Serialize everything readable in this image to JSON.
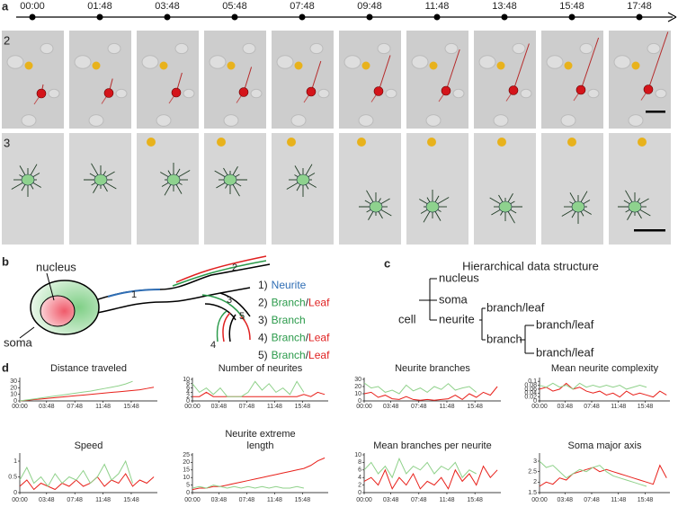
{
  "panel_labels": [
    "a",
    "b",
    "c",
    "d"
  ],
  "timeline": [
    "00:00",
    "01:48",
    "03:48",
    "05:48",
    "07:48",
    "09:48",
    "11:48",
    "13:48",
    "15:48",
    "17:48"
  ],
  "row_labels": [
    "2",
    "3"
  ],
  "cell_diagram": {
    "nucleus": "nucleus",
    "soma": "soma",
    "markers": [
      "1",
      "2",
      "3",
      "4",
      "5"
    ],
    "legend": [
      {
        "number": "1)",
        "parts": [
          {
            "text": "Neurite",
            "color": "#2e6db4"
          }
        ]
      },
      {
        "number": "2)",
        "parts": [
          {
            "text": "Branch",
            "color": "#2a9a4a"
          },
          {
            "text": "/",
            "color": "#222222"
          },
          {
            "text": "Leaf",
            "color": "#e02020"
          }
        ]
      },
      {
        "number": "3)",
        "parts": [
          {
            "text": "Branch",
            "color": "#2a9a4a"
          }
        ]
      },
      {
        "number": "4)",
        "parts": [
          {
            "text": "Branch",
            "color": "#2a9a4a"
          },
          {
            "text": "/",
            "color": "#222222"
          },
          {
            "text": "Leaf",
            "color": "#e02020"
          }
        ]
      },
      {
        "number": "5)",
        "parts": [
          {
            "text": "Branch",
            "color": "#2a9a4a"
          },
          {
            "text": "/",
            "color": "#222222"
          },
          {
            "text": "Leaf",
            "color": "#e02020"
          }
        ]
      }
    ]
  },
  "hierarchy": {
    "title": "Hierarchical data structure",
    "nodes": [
      "cell",
      "nucleus",
      "soma",
      "neurite",
      "branch/leaf",
      "branch",
      "branch/leaf",
      "branch/leaf"
    ]
  },
  "chart_data": [
    {
      "type": "line",
      "title": "Distance traveled",
      "x": [
        0,
        1,
        2,
        3,
        4,
        5,
        6,
        7,
        8,
        9,
        10,
        11,
        12,
        13,
        14,
        15,
        16,
        17,
        18,
        19
      ],
      "xlim": [
        0,
        19.5
      ],
      "xticks": [
        {
          "value": 0,
          "label": "00:00"
        },
        {
          "value": 3.8,
          "label": "03:48"
        },
        {
          "value": 7.8,
          "label": "07:48"
        },
        {
          "value": 11.8,
          "label": "11:48"
        },
        {
          "value": 15.8,
          "label": "15:48"
        }
      ],
      "ylim": [
        0,
        33
      ],
      "yticks": [
        0,
        10,
        20,
        30
      ],
      "series": [
        {
          "color": "#e8201a",
          "values": [
            0,
            1,
            2,
            3,
            4,
            5,
            6,
            7,
            8,
            9,
            10,
            11,
            12,
            13,
            14,
            15,
            16,
            17,
            19,
            21
          ]
        },
        {
          "color": "#8fd18a",
          "values": [
            0,
            1.5,
            3,
            4.5,
            6,
            7.5,
            9,
            10.5,
            12,
            13.5,
            15,
            17,
            19,
            21,
            23,
            26,
            30,
            null,
            null,
            null
          ]
        }
      ]
    },
    {
      "type": "line",
      "title": "Number of neurites",
      "x": [
        0,
        1,
        2,
        3,
        4,
        5,
        6,
        7,
        8,
        9,
        10,
        11,
        12,
        13,
        14,
        15,
        16,
        17,
        18,
        19
      ],
      "xlim": [
        0,
        19.5
      ],
      "xticks": [
        {
          "value": 0,
          "label": "00:00"
        },
        {
          "value": 3.8,
          "label": "03:48"
        },
        {
          "value": 7.8,
          "label": "07:48"
        },
        {
          "value": 11.8,
          "label": "11:48"
        },
        {
          "value": 15.8,
          "label": "15:48"
        }
      ],
      "ylim": [
        0,
        10
      ],
      "yticks": [
        0,
        2,
        4,
        6,
        8,
        10
      ],
      "series": [
        {
          "color": "#e8201a",
          "values": [
            2,
            2,
            4,
            2,
            2,
            2,
            2,
            2,
            2,
            2,
            2,
            2,
            2,
            2,
            2,
            2,
            3,
            2,
            4,
            3
          ]
        },
        {
          "color": "#8fd18a",
          "values": [
            8,
            4,
            6,
            3,
            6,
            2,
            2,
            2,
            4,
            9,
            5,
            8,
            4,
            6,
            3,
            9,
            4,
            null,
            null,
            null
          ]
        }
      ]
    },
    {
      "type": "line",
      "title": "Neurite branches",
      "x": [
        0,
        1,
        2,
        3,
        4,
        5,
        6,
        7,
        8,
        9,
        10,
        11,
        12,
        13,
        14,
        15,
        16,
        17,
        18,
        19
      ],
      "xlim": [
        0,
        19.5
      ],
      "xticks": [
        {
          "value": 0,
          "label": "00:00"
        },
        {
          "value": 3.8,
          "label": "03:48"
        },
        {
          "value": 7.8,
          "label": "07:48"
        },
        {
          "value": 11.8,
          "label": "11:48"
        },
        {
          "value": 15.8,
          "label": "15:48"
        }
      ],
      "ylim": [
        0,
        30
      ],
      "yticks": [
        0,
        10,
        20,
        30
      ],
      "series": [
        {
          "color": "#e8201a",
          "values": [
            10,
            12,
            5,
            8,
            3,
            2,
            6,
            2,
            1,
            2,
            1,
            2,
            3,
            8,
            2,
            10,
            5,
            12,
            8,
            20
          ]
        },
        {
          "color": "#8fd18a",
          "values": [
            25,
            18,
            20,
            12,
            15,
            10,
            22,
            14,
            18,
            12,
            20,
            16,
            24,
            15,
            18,
            20,
            12,
            null,
            null,
            null
          ]
        }
      ]
    },
    {
      "type": "line",
      "title": "Mean neurite complexity",
      "x": [
        0,
        1,
        2,
        3,
        4,
        5,
        6,
        7,
        8,
        9,
        10,
        11,
        12,
        13,
        14,
        15,
        16,
        17,
        18,
        19
      ],
      "xlim": [
        0,
        19.5
      ],
      "xticks": [
        {
          "value": 0,
          "label": "00:00"
        },
        {
          "value": 3.8,
          "label": "03:48"
        },
        {
          "value": 7.8,
          "label": "07:48"
        },
        {
          "value": 11.8,
          "label": "11:48"
        },
        {
          "value": 15.8,
          "label": "15:48"
        }
      ],
      "ylim": [
        0,
        0.11
      ],
      "yticks": [
        0,
        0.02,
        0.04,
        0.06,
        0.08,
        0.1
      ],
      "series": [
        {
          "color": "#e8201a",
          "values": [
            0.06,
            0.07,
            0.05,
            0.06,
            0.09,
            0.06,
            0.07,
            0.05,
            0.04,
            0.05,
            0.03,
            0.04,
            0.02,
            0.05,
            0.03,
            0.04,
            0.03,
            0.02,
            0.05,
            0.03
          ]
        },
        {
          "color": "#8fd18a",
          "values": [
            0.08,
            0.07,
            0.09,
            0.07,
            0.08,
            0.06,
            0.09,
            0.07,
            0.08,
            0.07,
            0.08,
            0.07,
            0.08,
            0.06,
            0.07,
            0.08,
            0.07,
            null,
            null,
            null
          ]
        }
      ]
    },
    {
      "type": "line",
      "title": "Speed",
      "x": [
        0,
        1,
        2,
        3,
        4,
        5,
        6,
        7,
        8,
        9,
        10,
        11,
        12,
        13,
        14,
        15,
        16,
        17,
        18,
        19
      ],
      "xlim": [
        0,
        19.5
      ],
      "xticks": [
        {
          "value": 0,
          "label": "00:00"
        },
        {
          "value": 3.8,
          "label": "03:48"
        },
        {
          "value": 7.8,
          "label": "07:48"
        },
        {
          "value": 11.8,
          "label": "11:48"
        },
        {
          "value": 15.8,
          "label": "15:48"
        }
      ],
      "ylim": [
        0,
        1.2
      ],
      "yticks": [
        0,
        0.5,
        1
      ],
      "series": [
        {
          "color": "#e8201a",
          "values": [
            0.2,
            0.4,
            0.1,
            0.3,
            0.2,
            0.1,
            0.3,
            0.2,
            0.4,
            0.2,
            0.3,
            0.5,
            0.2,
            0.4,
            0.3,
            0.6,
            0.2,
            0.4,
            0.3,
            0.5
          ]
        },
        {
          "color": "#8fd18a",
          "values": [
            0.4,
            0.8,
            0.3,
            0.5,
            0.2,
            0.6,
            0.3,
            0.5,
            0.4,
            0.7,
            0.3,
            0.5,
            0.9,
            0.4,
            0.6,
            1,
            0.3,
            null,
            null,
            null
          ]
        }
      ]
    },
    {
      "type": "line",
      "title": "Neurite extreme length",
      "x": [
        0,
        1,
        2,
        3,
        4,
        5,
        6,
        7,
        8,
        9,
        10,
        11,
        12,
        13,
        14,
        15,
        16,
        17,
        18,
        19
      ],
      "xlim": [
        0,
        19.5
      ],
      "xticks": [
        {
          "value": 0,
          "label": "00:00"
        },
        {
          "value": 3.8,
          "label": "03:48"
        },
        {
          "value": 7.8,
          "label": "07:48"
        },
        {
          "value": 11.8,
          "label": "11:48"
        },
        {
          "value": 15.8,
          "label": "15:48"
        }
      ],
      "ylim": [
        0,
        25
      ],
      "yticks": [
        0,
        5,
        10,
        15,
        20,
        25
      ],
      "series": [
        {
          "color": "#e8201a",
          "values": [
            2,
            3,
            3,
            4,
            4,
            5,
            6,
            7,
            8,
            9,
            10,
            11,
            12,
            13,
            14,
            15,
            16,
            18,
            21,
            23
          ]
        },
        {
          "color": "#8fd18a",
          "values": [
            3,
            4,
            3,
            5,
            4,
            3,
            4,
            3,
            4,
            3,
            4,
            3,
            4,
            3,
            3,
            4,
            3,
            null,
            null,
            null
          ]
        }
      ]
    },
    {
      "type": "line",
      "title": "Mean branches per neurite",
      "x": [
        0,
        1,
        2,
        3,
        4,
        5,
        6,
        7,
        8,
        9,
        10,
        11,
        12,
        13,
        14,
        15,
        16,
        17,
        18,
        19
      ],
      "xlim": [
        0,
        19.5
      ],
      "xticks": [
        {
          "value": 0,
          "label": "00:00"
        },
        {
          "value": 3.8,
          "label": "03:48"
        },
        {
          "value": 7.8,
          "label": "07:48"
        },
        {
          "value": 11.8,
          "label": "11:48"
        },
        {
          "value": 15.8,
          "label": "15:48"
        }
      ],
      "ylim": [
        0,
        10
      ],
      "yticks": [
        0,
        2,
        4,
        6,
        8,
        10
      ],
      "series": [
        {
          "color": "#e8201a",
          "values": [
            3,
            4,
            2,
            6,
            1,
            4,
            2,
            5,
            1,
            3,
            2,
            4,
            1,
            6,
            3,
            5,
            2,
            7,
            4,
            6
          ]
        },
        {
          "color": "#8fd18a",
          "values": [
            6,
            8,
            5,
            7,
            4,
            9,
            5,
            7,
            6,
            8,
            5,
            7,
            6,
            8,
            4,
            6,
            5,
            null,
            null,
            null
          ]
        }
      ]
    },
    {
      "type": "line",
      "title": "Soma major axis",
      "x": [
        0,
        1,
        2,
        3,
        4,
        5,
        6,
        7,
        8,
        9,
        10,
        11,
        12,
        13,
        14,
        15,
        16,
        17,
        18,
        19
      ],
      "xlim": [
        0,
        19.5
      ],
      "xticks": [
        {
          "value": 0,
          "label": "00:00"
        },
        {
          "value": 3.8,
          "label": "03:48"
        },
        {
          "value": 7.8,
          "label": "07:48"
        },
        {
          "value": 11.8,
          "label": "11:48"
        },
        {
          "value": 15.8,
          "label": "15:48"
        }
      ],
      "ylim": [
        1.5,
        3.3
      ],
      "yticks": [
        1.5,
        2,
        2.5,
        3
      ],
      "series": [
        {
          "color": "#e8201a",
          "values": [
            1.8,
            2,
            1.9,
            2.2,
            2.1,
            2.4,
            2.5,
            2.6,
            2.7,
            2.5,
            2.6,
            2.5,
            2.4,
            2.3,
            2.2,
            2.1,
            2,
            1.9,
            2.8,
            2.2
          ]
        },
        {
          "color": "#8fd18a",
          "values": [
            3,
            2.7,
            2.8,
            2.5,
            2.2,
            2.4,
            2.6,
            2.5,
            2.7,
            2.8,
            2.5,
            2.3,
            2.2,
            2.1,
            2,
            1.9,
            1.8,
            null,
            null,
            null
          ]
        }
      ]
    }
  ]
}
